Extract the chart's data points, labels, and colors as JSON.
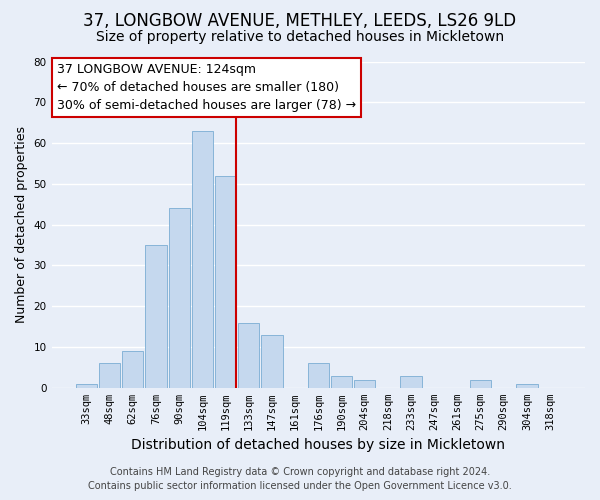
{
  "title": "37, LONGBOW AVENUE, METHLEY, LEEDS, LS26 9LD",
  "subtitle": "Size of property relative to detached houses in Mickletown",
  "xlabel": "Distribution of detached houses by size in Mickletown",
  "ylabel": "Number of detached properties",
  "bin_labels": [
    "33sqm",
    "48sqm",
    "62sqm",
    "76sqm",
    "90sqm",
    "104sqm",
    "119sqm",
    "133sqm",
    "147sqm",
    "161sqm",
    "176sqm",
    "190sqm",
    "204sqm",
    "218sqm",
    "233sqm",
    "247sqm",
    "261sqm",
    "275sqm",
    "290sqm",
    "304sqm",
    "318sqm"
  ],
  "bar_values": [
    1,
    6,
    9,
    35,
    44,
    63,
    52,
    16,
    13,
    0,
    6,
    3,
    2,
    0,
    3,
    0,
    0,
    2,
    0,
    1,
    0
  ],
  "bar_color": "#c5d8ee",
  "bar_edge_color": "#7aadd4",
  "vline_x_index": 6,
  "vline_color": "#cc0000",
  "ylim": [
    0,
    80
  ],
  "yticks": [
    0,
    10,
    20,
    30,
    40,
    50,
    60,
    70,
    80
  ],
  "annotation_title": "37 LONGBOW AVENUE: 124sqm",
  "annotation_line1": "← 70% of detached houses are smaller (180)",
  "annotation_line2": "30% of semi-detached houses are larger (78) →",
  "annotation_box_color": "#ffffff",
  "annotation_box_edge": "#cc0000",
  "footer1": "Contains HM Land Registry data © Crown copyright and database right 2024.",
  "footer2": "Contains public sector information licensed under the Open Government Licence v3.0.",
  "bg_color": "#e8eef8",
  "plot_bg_color": "#e8eef8",
  "grid_color": "#ffffff",
  "title_fontsize": 12,
  "subtitle_fontsize": 10,
  "xlabel_fontsize": 10,
  "ylabel_fontsize": 9,
  "tick_fontsize": 7.5,
  "footer_fontsize": 7,
  "ann_fontsize": 9
}
